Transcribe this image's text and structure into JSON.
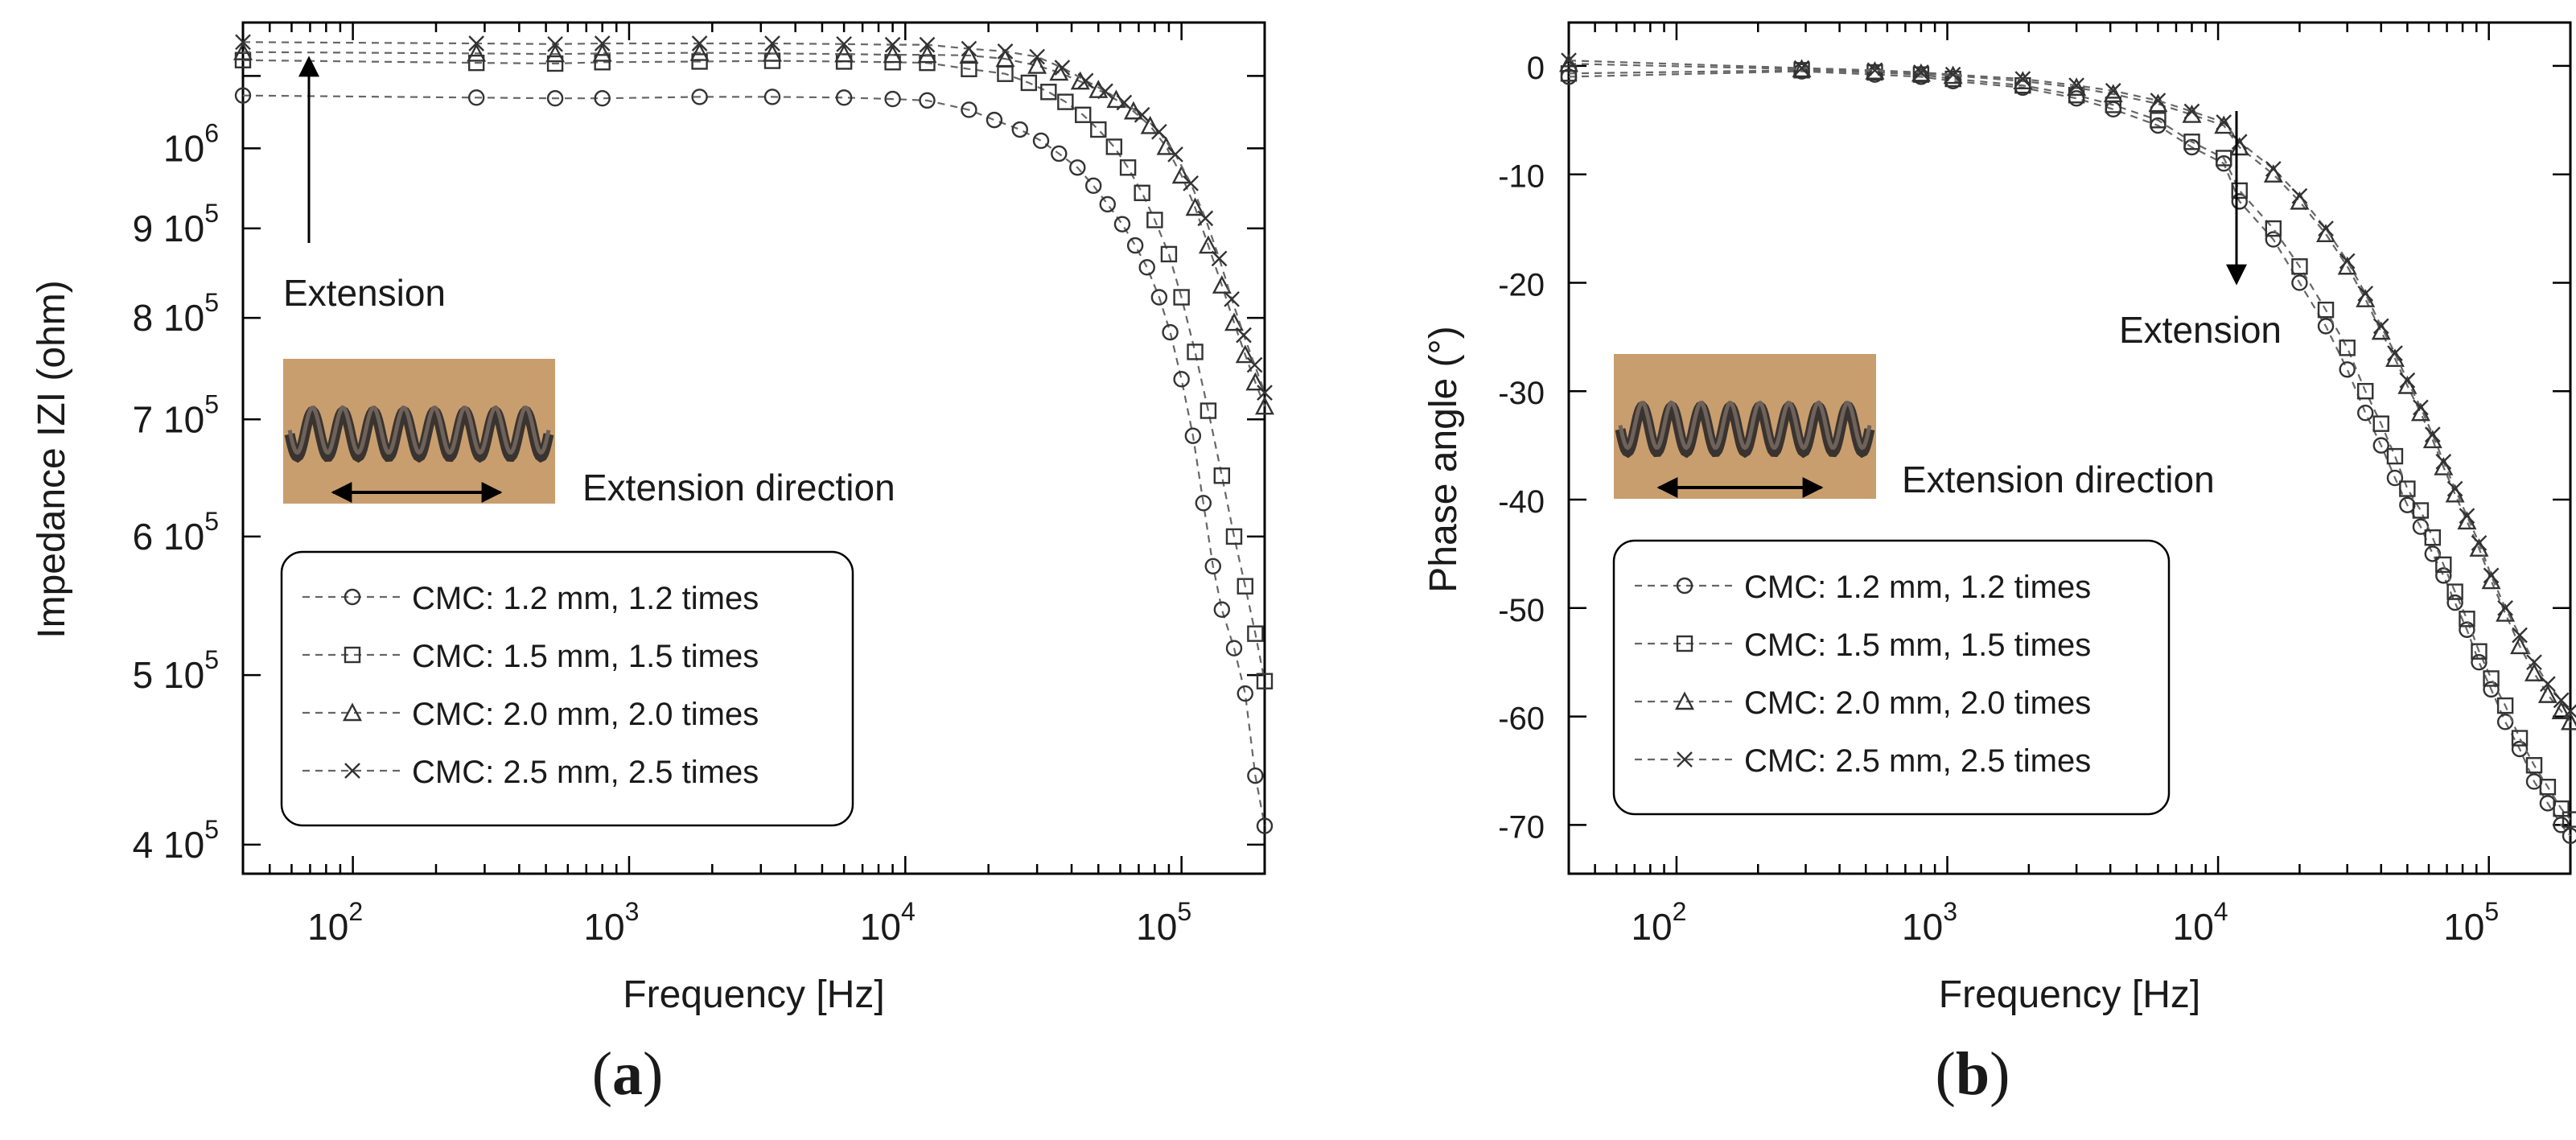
{
  "chart_data": [
    {
      "panel": "(a)",
      "panel_letter": "a",
      "type": "scatter",
      "title": "",
      "xlabel": "Frequency [Hz]",
      "ylabel": "Impedance IZI (ohm)",
      "x_scale": "log",
      "y_scale": "log",
      "xlim": [
        40,
        200000
      ],
      "ylim": [
        385000,
        1180000
      ],
      "x_ticks": [
        {
          "value": 100,
          "base": "10",
          "exp": "2"
        },
        {
          "value": 1000,
          "base": "10",
          "exp": "3"
        },
        {
          "value": 10000,
          "base": "10",
          "exp": "4"
        },
        {
          "value": 100000,
          "base": "10",
          "exp": "5"
        }
      ],
      "y_ticks": [
        {
          "value": 400000,
          "mant": "4 10",
          "exp": "5"
        },
        {
          "value": 500000,
          "mant": "5 10",
          "exp": "5"
        },
        {
          "value": 600000,
          "mant": "6 10",
          "exp": "5"
        },
        {
          "value": 700000,
          "mant": "7 10",
          "exp": "5"
        },
        {
          "value": 800000,
          "mant": "8 10",
          "exp": "5"
        },
        {
          "value": 900000,
          "mant": "9 10",
          "exp": "5"
        },
        {
          "value": 1000000,
          "mant": "10",
          "exp": "6"
        }
      ],
      "annotation": "Extension",
      "inset_caption": "Extension direction",
      "legend": [
        {
          "label": "CMC: 1.2 mm, 1.2 times",
          "marker": "circle"
        },
        {
          "label": "CMC: 1.5 mm, 1.5 times",
          "marker": "square"
        },
        {
          "label": "CMC: 2.0 mm, 2.0 times",
          "marker": "triangle"
        },
        {
          "label": "CMC: 2.5 mm, 2.5 times",
          "marker": "x"
        }
      ],
      "series": [
        {
          "name": "CMC: 1.2 mm, 1.2 times",
          "marker": "circle",
          "x": [
            40,
            280,
            540,
            800,
            1800,
            3300,
            6000,
            9000,
            12000,
            17000,
            21000,
            26000,
            31000,
            36000,
            42000,
            48000,
            54000,
            61000,
            68000,
            75000,
            83000,
            91000,
            100000,
            110000,
            120000,
            130000,
            140000,
            155000,
            170000,
            185000,
            200000
          ],
          "y": [
            1072000,
            1069000,
            1068000,
            1068000,
            1070000,
            1070000,
            1069000,
            1067000,
            1065000,
            1052000,
            1038000,
            1025000,
            1010000,
            993000,
            975000,
            952000,
            929000,
            905000,
            880000,
            855000,
            822000,
            785000,
            738000,
            685000,
            627000,
            577000,
            545000,
            518000,
            488000,
            438000,
            410000
          ]
        },
        {
          "name": "CMC: 1.5 mm, 1.5 times",
          "marker": "square",
          "x": [
            40,
            280,
            540,
            800,
            1800,
            3300,
            6000,
            9000,
            12000,
            17000,
            23000,
            28000,
            33000,
            38000,
            44000,
            50000,
            57000,
            64000,
            72000,
            80000,
            90000,
            100000,
            112000,
            125000,
            140000,
            155000,
            170000,
            185000,
            200000
          ],
          "y": [
            1123000,
            1119000,
            1118000,
            1120000,
            1121000,
            1122000,
            1121000,
            1120000,
            1119000,
            1110000,
            1103000,
            1090000,
            1077000,
            1063000,
            1045000,
            1025000,
            1002000,
            975000,
            943000,
            910000,
            870000,
            822000,
            765000,
            708000,
            650000,
            600000,
            562000,
            528000,
            496000
          ]
        },
        {
          "name": "CMC: 2.0 mm, 2.0 times",
          "marker": "triangle",
          "x": [
            40,
            280,
            540,
            800,
            1800,
            3300,
            6000,
            9000,
            12000,
            17000,
            23000,
            30000,
            36000,
            43000,
            50000,
            58000,
            67000,
            77000,
            88000,
            100000,
            112000,
            125000,
            140000,
            155000,
            170000,
            185000,
            200000
          ],
          "y": [
            1135000,
            1133000,
            1132000,
            1133000,
            1134000,
            1133000,
            1132000,
            1131000,
            1131000,
            1130000,
            1125000,
            1115000,
            1105000,
            1092000,
            1080000,
            1066000,
            1050000,
            1030000,
            1002000,
            965000,
            925000,
            880000,
            835000,
            795000,
            762000,
            735000,
            712000
          ]
        },
        {
          "name": "CMC: 2.5 mm, 2.5 times",
          "marker": "x",
          "x": [
            40,
            280,
            540,
            800,
            1800,
            3300,
            6000,
            9000,
            12000,
            17000,
            23000,
            30000,
            37000,
            45000,
            53000,
            62000,
            72000,
            83000,
            95000,
            108000,
            122000,
            137000,
            152000,
            168000,
            184000,
            200000
          ],
          "y": [
            1150000,
            1148000,
            1147000,
            1148000,
            1148000,
            1148000,
            1147000,
            1146000,
            1146000,
            1140000,
            1136000,
            1128000,
            1112000,
            1093000,
            1078000,
            1062000,
            1045000,
            1022000,
            992000,
            955000,
            912000,
            865000,
            820000,
            782000,
            752000,
            725000
          ]
        }
      ]
    },
    {
      "panel": "(b)",
      "panel_letter": "b",
      "type": "scatter",
      "title": "",
      "xlabel": "Frequency [Hz]",
      "ylabel": "Phase angle (°)",
      "x_scale": "log",
      "y_scale": "linear",
      "xlim": [
        40,
        200000
      ],
      "ylim": [
        -74.5,
        4
      ],
      "x_ticks": [
        {
          "value": 100,
          "base": "10",
          "exp": "2"
        },
        {
          "value": 1000,
          "base": "10",
          "exp": "3"
        },
        {
          "value": 10000,
          "base": "10",
          "exp": "4"
        },
        {
          "value": 100000,
          "base": "10",
          "exp": "5"
        }
      ],
      "y_ticks": [
        {
          "value": 0,
          "label": "0"
        },
        {
          "value": -10,
          "label": "-10"
        },
        {
          "value": -20,
          "label": "-20"
        },
        {
          "value": -30,
          "label": "-30"
        },
        {
          "value": -40,
          "label": "-40"
        },
        {
          "value": -50,
          "label": "-50"
        },
        {
          "value": -60,
          "label": "-60"
        },
        {
          "value": -70,
          "label": "-70"
        }
      ],
      "annotation": "Extension",
      "inset_caption": "Extension direction",
      "legend": [
        {
          "label": "CMC: 1.2 mm, 1.2 times",
          "marker": "circle"
        },
        {
          "label": "CMC: 1.5 mm, 1.5 times",
          "marker": "square"
        },
        {
          "label": "CMC: 2.0 mm, 2.0 times",
          "marker": "triangle"
        },
        {
          "label": "CMC: 2.5 mm, 2.5 times",
          "marker": "x"
        }
      ],
      "series": [
        {
          "name": "CMC: 1.2 mm, 1.2 times",
          "marker": "circle",
          "x": [
            40,
            290,
            540,
            800,
            1050,
            1900,
            3000,
            4100,
            6000,
            8000,
            10500,
            12000,
            16000,
            20000,
            25000,
            30000,
            35000,
            40000,
            45000,
            50000,
            56000,
            62000,
            68000,
            75000,
            83000,
            92000,
            102000,
            115000,
            130000,
            147000,
            165000,
            185000,
            200000
          ],
          "y": [
            -1,
            -0.5,
            -0.8,
            -1,
            -1.4,
            -2,
            -3,
            -4,
            -5.5,
            -7.5,
            -9,
            -12.5,
            -16,
            -20,
            -24,
            -28,
            -32,
            -35,
            -38,
            -40.5,
            -42.5,
            -45,
            -47,
            -49.5,
            -52,
            -55,
            -57.5,
            -60.5,
            -63,
            -66,
            -68,
            -70,
            -71
          ]
        },
        {
          "name": "CMC: 1.5 mm, 1.5 times",
          "marker": "square",
          "x": [
            40,
            290,
            540,
            800,
            1050,
            1900,
            3000,
            4100,
            6000,
            8000,
            10500,
            12000,
            16000,
            20000,
            25000,
            30000,
            35000,
            40000,
            45000,
            50000,
            56000,
            62000,
            68000,
            75000,
            83000,
            92000,
            102000,
            115000,
            130000,
            147000,
            165000,
            185000,
            200000
          ],
          "y": [
            -0.7,
            -0.4,
            -0.6,
            -0.8,
            -1.2,
            -1.8,
            -2.7,
            -3.6,
            -5,
            -7,
            -8.5,
            -11.5,
            -15,
            -18.5,
            -22.5,
            -26,
            -30,
            -33,
            -36,
            -39,
            -41,
            -43.5,
            -46,
            -48.5,
            -51,
            -54,
            -56.5,
            -59,
            -62,
            -64.5,
            -66.5,
            -68.5,
            -69.5
          ]
        },
        {
          "name": "CMC: 2.0 mm, 2.0 times",
          "marker": "triangle",
          "x": [
            40,
            290,
            540,
            800,
            1050,
            1900,
            3000,
            4100,
            6000,
            8000,
            10500,
            12000,
            16000,
            20000,
            25000,
            30000,
            35000,
            40000,
            45000,
            50000,
            56000,
            62000,
            68000,
            75000,
            83000,
            92000,
            102000,
            115000,
            130000,
            147000,
            165000,
            185000,
            200000
          ],
          "y": [
            0.2,
            -0.3,
            -0.5,
            -0.7,
            -0.9,
            -1.4,
            -2,
            -2.6,
            -3.5,
            -4.5,
            -5.5,
            -7.5,
            -10,
            -12.5,
            -15.5,
            -18.5,
            -21.5,
            -24.5,
            -27,
            -29.5,
            -32,
            -34.5,
            -37,
            -39.5,
            -42,
            -44.5,
            -47.5,
            -50.5,
            -53.5,
            -56,
            -58,
            -59.5,
            -60.5
          ]
        },
        {
          "name": "CMC: 2.5 mm, 2.5 times",
          "marker": "x",
          "x": [
            40,
            290,
            540,
            800,
            1050,
            1900,
            3000,
            4100,
            6000,
            8000,
            10500,
            12000,
            16000,
            20000,
            25000,
            30000,
            35000,
            40000,
            45000,
            50000,
            56000,
            62000,
            68000,
            75000,
            83000,
            92000,
            102000,
            115000,
            130000,
            147000,
            165000,
            185000,
            200000
          ],
          "y": [
            0.5,
            -0.2,
            -0.4,
            -0.6,
            -0.8,
            -1.2,
            -1.8,
            -2.3,
            -3.2,
            -4.2,
            -5.2,
            -7,
            -9.5,
            -12,
            -15,
            -18,
            -21,
            -24,
            -26.5,
            -29,
            -31.5,
            -34,
            -36.5,
            -39,
            -41.5,
            -44,
            -47,
            -50,
            -52.5,
            -55,
            -57,
            -58.5,
            -59.5
          ]
        }
      ]
    }
  ]
}
